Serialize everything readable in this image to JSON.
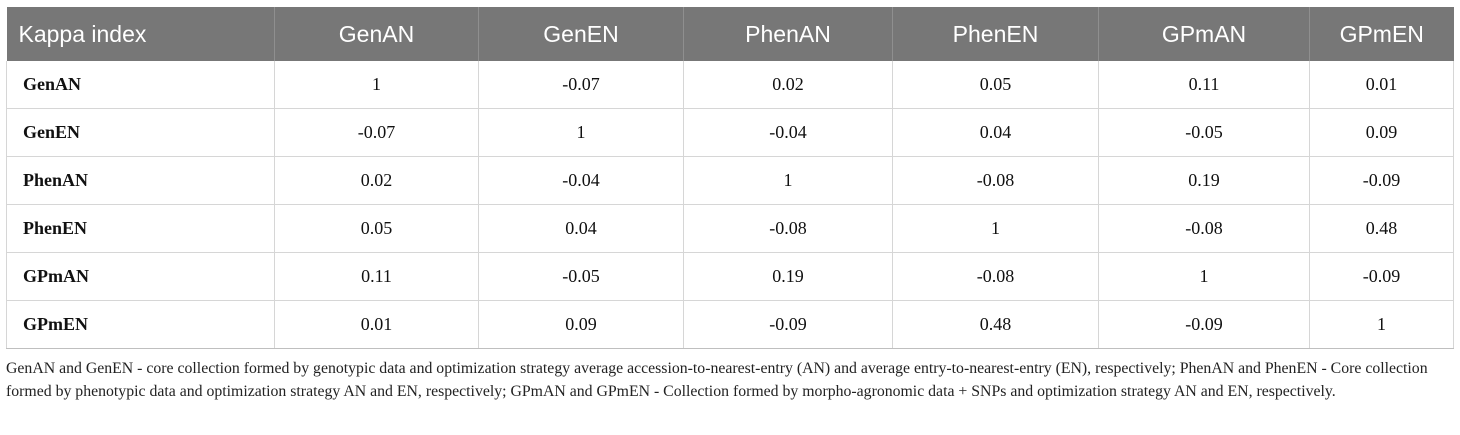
{
  "table": {
    "headers": [
      "Kappa index",
      "GenAN",
      "GenEN",
      "PhenAN",
      "PhenEN",
      "GPmAN",
      "GPmEN"
    ],
    "rows": [
      [
        "GenAN",
        "1",
        "-0.07",
        "0.02",
        "0.05",
        "0.11",
        "0.01"
      ],
      [
        "GenEN",
        "-0.07",
        "1",
        "-0.04",
        "0.04",
        "-0.05",
        "0.09"
      ],
      [
        "PhenAN",
        "0.02",
        "-0.04",
        "1",
        "-0.08",
        "0.19",
        "-0.09"
      ],
      [
        "PhenEN",
        "0.05",
        "0.04",
        "-0.08",
        "1",
        "-0.08",
        "0.48"
      ],
      [
        "GPmAN",
        "0.11",
        "-0.05",
        "0.19",
        "-0.08",
        "1",
        "-0.09"
      ],
      [
        "GPmEN",
        "0.01",
        "0.09",
        "-0.09",
        "0.48",
        "-0.09",
        "1"
      ]
    ]
  },
  "footnote": "GenAN and GenEN - core collection formed by genotypic data and optimization strategy average accession-to-nearest-entry (AN) and average entry-to-nearest-entry (EN), respectively; PhenAN and PhenEN - Core collection formed by phenotypic data and optimization strategy AN and EN, respectively; GPmAN and GPmEN - Collection formed by morpho-agronomic data + SNPs and optimization strategy AN and EN, respectively.",
  "colors": {
    "header_bg": "#777777",
    "header_text": "#ffffff",
    "grid": "#d6d6d6"
  }
}
